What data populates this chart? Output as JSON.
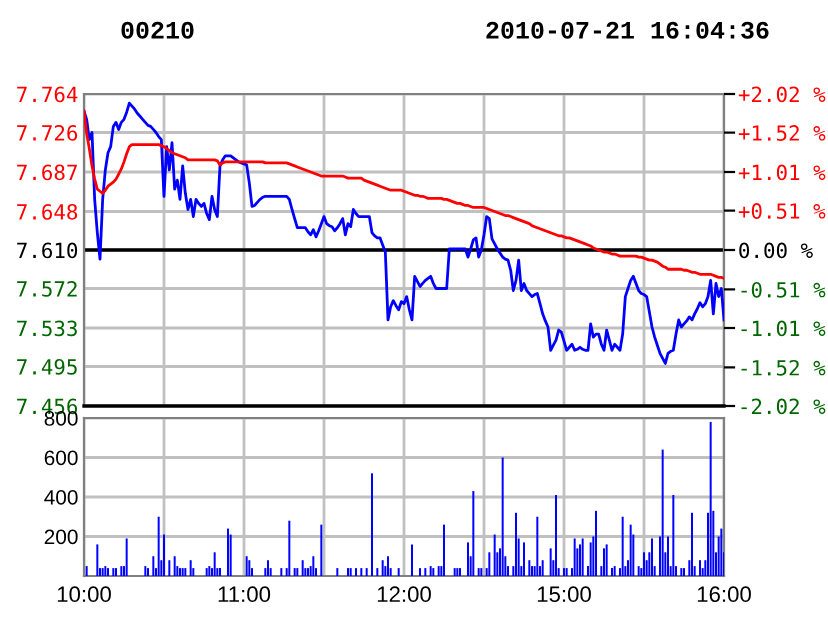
{
  "chart_data": [
    {
      "type": "line",
      "title": "00210",
      "subtitle": "2010-07-21 16:04:36",
      "categories": [
        null,
        null,
        null,
        null,
        null,
        null,
        null,
        null,
        null,
        null,
        null,
        null,
        null,
        null,
        null,
        null,
        null,
        null,
        null,
        null,
        null,
        null,
        null,
        null,
        null,
        null,
        null,
        null,
        null,
        null,
        null,
        null,
        null,
        null,
        null,
        null,
        null,
        null,
        null,
        null,
        null,
        null,
        null,
        null,
        null,
        null,
        null,
        null,
        null,
        null,
        null,
        null,
        null,
        null,
        null,
        null,
        null,
        null,
        null,
        null,
        null,
        null,
        null,
        null,
        null,
        null,
        null,
        null,
        null,
        null,
        null,
        null,
        null,
        null,
        null,
        null,
        null,
        null,
        null,
        null,
        null,
        null,
        null,
        null,
        null,
        null,
        null,
        null,
        null,
        null,
        null,
        null,
        null,
        null,
        null,
        null,
        null,
        null,
        null,
        null,
        null,
        null,
        null,
        null,
        null,
        null,
        null,
        null,
        null,
        null,
        null,
        null,
        null,
        null,
        null,
        null,
        null,
        null,
        null,
        null,
        null,
        null,
        null,
        null,
        null,
        null,
        null,
        null,
        null,
        null,
        null,
        null,
        null,
        null,
        null,
        null,
        null,
        null,
        null,
        null,
        null,
        null,
        null,
        null,
        null,
        null,
        null,
        null,
        null,
        null,
        null,
        null,
        null,
        null,
        null,
        null,
        null,
        null,
        null,
        null,
        null,
        null,
        null,
        null,
        null,
        null,
        null,
        null,
        null,
        null,
        null,
        null,
        null,
        null,
        null,
        null,
        null,
        null,
        null,
        null,
        null,
        null,
        null,
        null,
        null,
        null,
        null,
        null,
        null,
        null,
        null,
        null,
        null,
        null,
        null,
        null,
        null,
        null,
        null,
        null,
        null,
        null,
        null,
        null,
        null,
        null,
        null,
        null,
        null,
        null,
        null,
        null,
        null,
        null,
        null,
        null,
        null,
        null,
        null,
        null,
        null,
        null,
        null,
        null,
        null,
        null,
        null,
        null,
        null,
        null,
        null,
        null,
        null,
        null,
        null,
        null,
        null,
        null,
        null,
        null,
        null
      ],
      "ylim": [
        7.456,
        7.764
      ],
      "yticks": [
        7.456,
        7.495,
        7.533,
        7.572,
        {
          "value": 7.61,
          "label": "7.610"
        },
        7.648,
        7.687,
        7.726,
        7.764
      ],
      "y2lim": [
        -2.02,
        2.02
      ],
      "y2ticks": [
        {
          "value": -2.02,
          "label": "-2.02 %"
        },
        {
          "value": -1.52,
          "label": "-1.52 %"
        },
        {
          "value": -1.01,
          "label": "-1.01 %"
        },
        {
          "value": -0.51,
          "label": "-0.51 %"
        },
        {
          "value": 0,
          "label": "0.00 %"
        },
        {
          "value": 0.51,
          "label": "+0.51 %"
        },
        {
          "value": 1.01,
          "label": "+1.01 %"
        },
        {
          "value": 1.52,
          "label": "+1.52 %"
        },
        {
          "value": 2.02,
          "label": "+2.02 %"
        }
      ],
      "tick_labels": "y",
      "grid": true,
      "marker": "none",
      "line_style": "solid",
      "ref_lines": [
        {
          "axis": "y",
          "value": 7.61,
          "label": null,
          "color": "#000000"
        }
      ],
      "series": [
        {
          "color": "#0000ff",
          "values": [
            7.747,
            7.739,
            7.719,
            7.726,
            7.66,
            7.627,
            7.601,
            7.66,
            7.689,
            7.706,
            7.712,
            7.732,
            7.736,
            7.729,
            7.736,
            7.739,
            7.746,
            7.755,
            7.752,
            7.749,
            7.745,
            7.742,
            7.739,
            7.736,
            7.733,
            7.732,
            7.729,
            7.726,
            7.722,
            7.719,
            7.663,
            7.712,
            7.689,
            7.716,
            7.67,
            7.679,
            7.66,
            7.693,
            7.666,
            7.65,
            7.66,
            7.643,
            7.66,
            7.656,
            7.653,
            7.656,
            7.646,
            7.64,
            7.663,
            7.65,
            7.643,
            7.693,
            7.699,
            7.703,
            7.703,
            7.703,
            7.701,
            7.699,
            7.697,
            7.696,
            7.695,
            7.694,
            7.676,
            7.653,
            7.654,
            7.657,
            7.66,
            7.662,
            7.663,
            7.663,
            7.663,
            7.663,
            7.663,
            7.663,
            7.663,
            7.663,
            7.663,
            7.66,
            7.65,
            7.641,
            7.632,
            7.632,
            7.632,
            7.632,
            7.628,
            7.625,
            7.63,
            7.623,
            7.629,
            7.636,
            7.643,
            7.636,
            7.634,
            7.633,
            7.629,
            7.632,
            7.636,
            7.641,
            7.625,
            7.636,
            7.633,
            7.65,
            7.646,
            7.643,
            7.643,
            7.643,
            7.643,
            7.643,
            7.627,
            7.624,
            7.622,
            7.622,
            7.615,
            7.608,
            7.541,
            7.554,
            7.56,
            7.555,
            7.551,
            7.559,
            7.557,
            7.564,
            7.551,
            7.541,
            7.584,
            7.579,
            7.574,
            7.577,
            7.58,
            7.582,
            7.584,
            7.577,
            7.572,
            7.572,
            7.572,
            7.572,
            7.572,
            7.611,
            7.611,
            7.611,
            7.611,
            7.611,
            7.611,
            7.611,
            7.603,
            7.611,
            7.62,
            7.622,
            7.603,
            7.61,
            7.625,
            7.643,
            7.641,
            7.621,
            7.616,
            7.611,
            7.607,
            7.603,
            7.601,
            7.6,
            7.59,
            7.57,
            7.58,
            7.6,
            7.57,
            7.577,
            7.57,
            7.567,
            7.564,
            7.566,
            7.567,
            7.557,
            7.547,
            7.54,
            7.534,
            7.511,
            7.516,
            7.521,
            7.531,
            7.529,
            7.52,
            7.511,
            7.514,
            7.517,
            7.511,
            7.512,
            7.514,
            7.512,
            7.511,
            7.511,
            7.537,
            7.524,
            7.527,
            7.527,
            7.517,
            7.511,
            7.531,
            7.521,
            7.511,
            7.517,
            7.514,
            7.511,
            7.527,
            7.564,
            7.572,
            7.58,
            7.584,
            7.577,
            7.57,
            7.567,
            7.566,
            7.564,
            7.549,
            7.534,
            7.524,
            7.516,
            7.508,
            7.503,
            7.498,
            7.508,
            7.51,
            7.511,
            7.527,
            7.541,
            7.534,
            7.537,
            7.54,
            7.544,
            7.541,
            7.547,
            7.552,
            7.558,
            7.554,
            7.557,
            7.564,
            7.58,
            7.547,
            7.577,
            7.564,
            7.572,
            7.541
          ]
        },
        {
          "color": "#ff0000",
          "values": [
            7.747,
            7.725,
            7.71,
            7.693,
            7.68,
            7.67,
            7.668,
            7.666,
            7.669,
            7.673,
            7.675,
            7.677,
            7.68,
            7.685,
            7.69,
            7.697,
            7.705,
            7.712,
            7.714,
            7.714,
            7.714,
            7.714,
            7.714,
            7.714,
            7.714,
            7.714,
            7.714,
            7.714,
            7.714,
            7.713,
            7.712,
            7.71,
            7.708,
            7.706,
            7.705,
            7.704,
            7.703,
            7.702,
            7.701,
            7.699,
            7.699,
            7.699,
            7.699,
            7.699,
            7.699,
            7.699,
            7.699,
            7.699,
            7.699,
            7.699,
            7.698,
            7.694,
            7.696,
            7.697,
            7.697,
            7.697,
            7.697,
            7.697,
            7.697,
            7.697,
            7.697,
            7.697,
            7.697,
            7.697,
            7.697,
            7.697,
            7.697,
            7.697,
            7.696,
            7.696,
            7.696,
            7.696,
            7.696,
            7.696,
            7.696,
            7.696,
            7.696,
            7.695,
            7.694,
            7.693,
            7.692,
            7.691,
            7.69,
            7.689,
            7.688,
            7.687,
            7.686,
            7.685,
            7.684,
            7.683,
            7.683,
            7.683,
            7.683,
            7.683,
            7.683,
            7.683,
            7.683,
            7.683,
            7.682,
            7.681,
            7.681,
            7.681,
            7.681,
            7.681,
            7.681,
            7.679,
            7.678,
            7.677,
            7.676,
            7.675,
            7.674,
            7.673,
            7.672,
            7.671,
            7.67,
            7.669,
            7.669,
            7.669,
            7.669,
            7.669,
            7.668,
            7.667,
            7.666,
            7.665,
            7.664,
            7.664,
            7.663,
            7.663,
            7.662,
            7.661,
            7.661,
            7.661,
            7.661,
            7.661,
            7.661,
            7.66,
            7.66,
            7.659,
            7.658,
            7.657,
            7.656,
            7.656,
            7.655,
            7.654,
            7.654,
            7.653,
            7.652,
            7.652,
            7.652,
            7.652,
            7.652,
            7.651,
            7.65,
            7.649,
            7.648,
            7.647,
            7.646,
            7.645,
            7.644,
            7.644,
            7.643,
            7.642,
            7.641,
            7.64,
            7.639,
            7.638,
            7.637,
            7.636,
            7.634,
            7.633,
            7.632,
            7.631,
            7.63,
            7.629,
            7.628,
            7.627,
            7.626,
            7.625,
            7.624,
            7.624,
            7.623,
            7.622,
            7.622,
            7.621,
            7.62,
            7.619,
            7.618,
            7.617,
            7.616,
            7.615,
            7.614,
            7.612,
            7.611,
            7.61,
            7.609,
            7.608,
            7.608,
            7.607,
            7.606,
            7.606,
            7.605,
            7.604,
            7.604,
            7.604,
            7.604,
            7.604,
            7.604,
            7.604,
            7.603,
            7.603,
            7.602,
            7.601,
            7.6,
            7.6,
            7.599,
            7.598,
            7.596,
            7.594,
            7.593,
            7.591,
            7.591,
            7.591,
            7.591,
            7.591,
            7.591,
            7.59,
            7.59,
            7.589,
            7.588,
            7.588,
            7.587,
            7.586,
            7.586,
            7.586,
            7.586,
            7.586,
            7.585,
            7.584,
            7.583,
            7.583,
            7.582
          ]
        }
      ]
    },
    {
      "type": "bar",
      "color": "#0000ff",
      "categories": [
        "10:00",
        null,
        null,
        null,
        null,
        null,
        null,
        null,
        null,
        null,
        null,
        null,
        null,
        null,
        null,
        null,
        null,
        null,
        null,
        null,
        null,
        null,
        null,
        null,
        null,
        null,
        null,
        null,
        null,
        null,
        null,
        null,
        null,
        null,
        null,
        null,
        null,
        null,
        null,
        null,
        null,
        null,
        null,
        null,
        null,
        null,
        null,
        null,
        null,
        null,
        null,
        null,
        null,
        null,
        null,
        null,
        null,
        null,
        null,
        null,
        "11:00",
        null,
        null,
        null,
        null,
        null,
        null,
        null,
        null,
        null,
        null,
        null,
        null,
        null,
        null,
        null,
        null,
        null,
        null,
        null,
        null,
        null,
        null,
        null,
        null,
        null,
        null,
        null,
        null,
        null,
        null,
        null,
        null,
        null,
        null,
        null,
        null,
        null,
        null,
        null,
        null,
        null,
        null,
        null,
        null,
        null,
        null,
        null,
        null,
        null,
        null,
        null,
        null,
        null,
        null,
        null,
        null,
        null,
        null,
        null,
        "12:00",
        null,
        null,
        null,
        null,
        null,
        null,
        null,
        null,
        null,
        null,
        null,
        null,
        null,
        null,
        null,
        null,
        null,
        null,
        null,
        null,
        null,
        null,
        null,
        null,
        null,
        null,
        null,
        null,
        null,
        null,
        null,
        null,
        null,
        null,
        null,
        null,
        null,
        null,
        null,
        null,
        null,
        null,
        null,
        null,
        null,
        null,
        null,
        null,
        null,
        null,
        null,
        null,
        null,
        null,
        null,
        null,
        null,
        null,
        null,
        "15:00",
        null,
        null,
        null,
        null,
        null,
        null,
        null,
        null,
        null,
        null,
        null,
        null,
        null,
        null,
        null,
        null,
        null,
        null,
        null,
        null,
        null,
        null,
        null,
        null,
        null,
        null,
        null,
        null,
        null,
        null,
        null,
        null,
        null,
        null,
        null,
        null,
        null,
        null,
        null,
        null,
        null,
        null,
        null,
        null,
        null,
        null,
        null,
        null,
        null,
        null,
        null,
        null,
        null,
        null,
        null,
        null,
        null,
        null,
        null,
        "16:00"
      ],
      "ylim": [
        0,
        800
      ],
      "yticks": [
        200,
        400,
        600,
        800
      ],
      "grid": true,
      "values": [
        null,
        50,
        null,
        null,
        null,
        160,
        40,
        40,
        50,
        40,
        null,
        40,
        40,
        null,
        50,
        50,
        190,
        null,
        null,
        null,
        null,
        null,
        null,
        50,
        40,
        null,
        100,
        40,
        300,
        80,
        210,
        null,
        80,
        null,
        100,
        50,
        40,
        40,
        40,
        null,
        80,
        40,
        null,
        null,
        null,
        null,
        40,
        50,
        40,
        120,
        40,
        40,
        null,
        null,
        240,
        210,
        null,
        null,
        null,
        null,
        null,
        100,
        80,
        40,
        null,
        null,
        null,
        null,
        40,
        80,
        40,
        null,
        null,
        null,
        40,
        null,
        40,
        280,
        null,
        40,
        40,
        null,
        80,
        40,
        40,
        50,
        100,
        40,
        null,
        260,
        null,
        null,
        null,
        null,
        null,
        40,
        null,
        null,
        null,
        40,
        40,
        null,
        40,
        null,
        40,
        null,
        40,
        null,
        520,
        null,
        40,
        null,
        80,
        50,
        100,
        40,
        null,
        null,
        40,
        null,
        null,
        null,
        null,
        160,
        null,
        null,
        40,
        null,
        40,
        null,
        50,
        40,
        null,
        50,
        50,
        260,
        null,
        null,
        null,
        40,
        40,
        40,
        null,
        null,
        170,
        100,
        430,
        null,
        40,
        40,
        null,
        40,
        120,
        null,
        210,
        120,
        140,
        600,
        100,
        50,
        null,
        50,
        320,
        190,
        50,
        170,
        null,
        80,
        50,
        50,
        300,
        50,
        80,
        null,
        null,
        140,
        80,
        410,
        40,
        null,
        40,
        40,
        null,
        40,
        190,
        140,
        160,
        190,
        null,
        50,
        170,
        200,
        330,
        null,
        50,
        140,
        160,
        null,
        40,
        50,
        null,
        40,
        300,
        50,
        80,
        260,
        210,
        null,
        50,
        40,
        120,
        80,
        120,
        190,
        50,
        null,
        200,
        640,
        120,
        200,
        50,
        410,
        50,
        null,
        40,
        40,
        null,
        80,
        320,
        50,
        null,
        80,
        40,
        80,
        320,
        780,
        330,
        120,
        200,
        240,
        120
      ]
    }
  ]
}
